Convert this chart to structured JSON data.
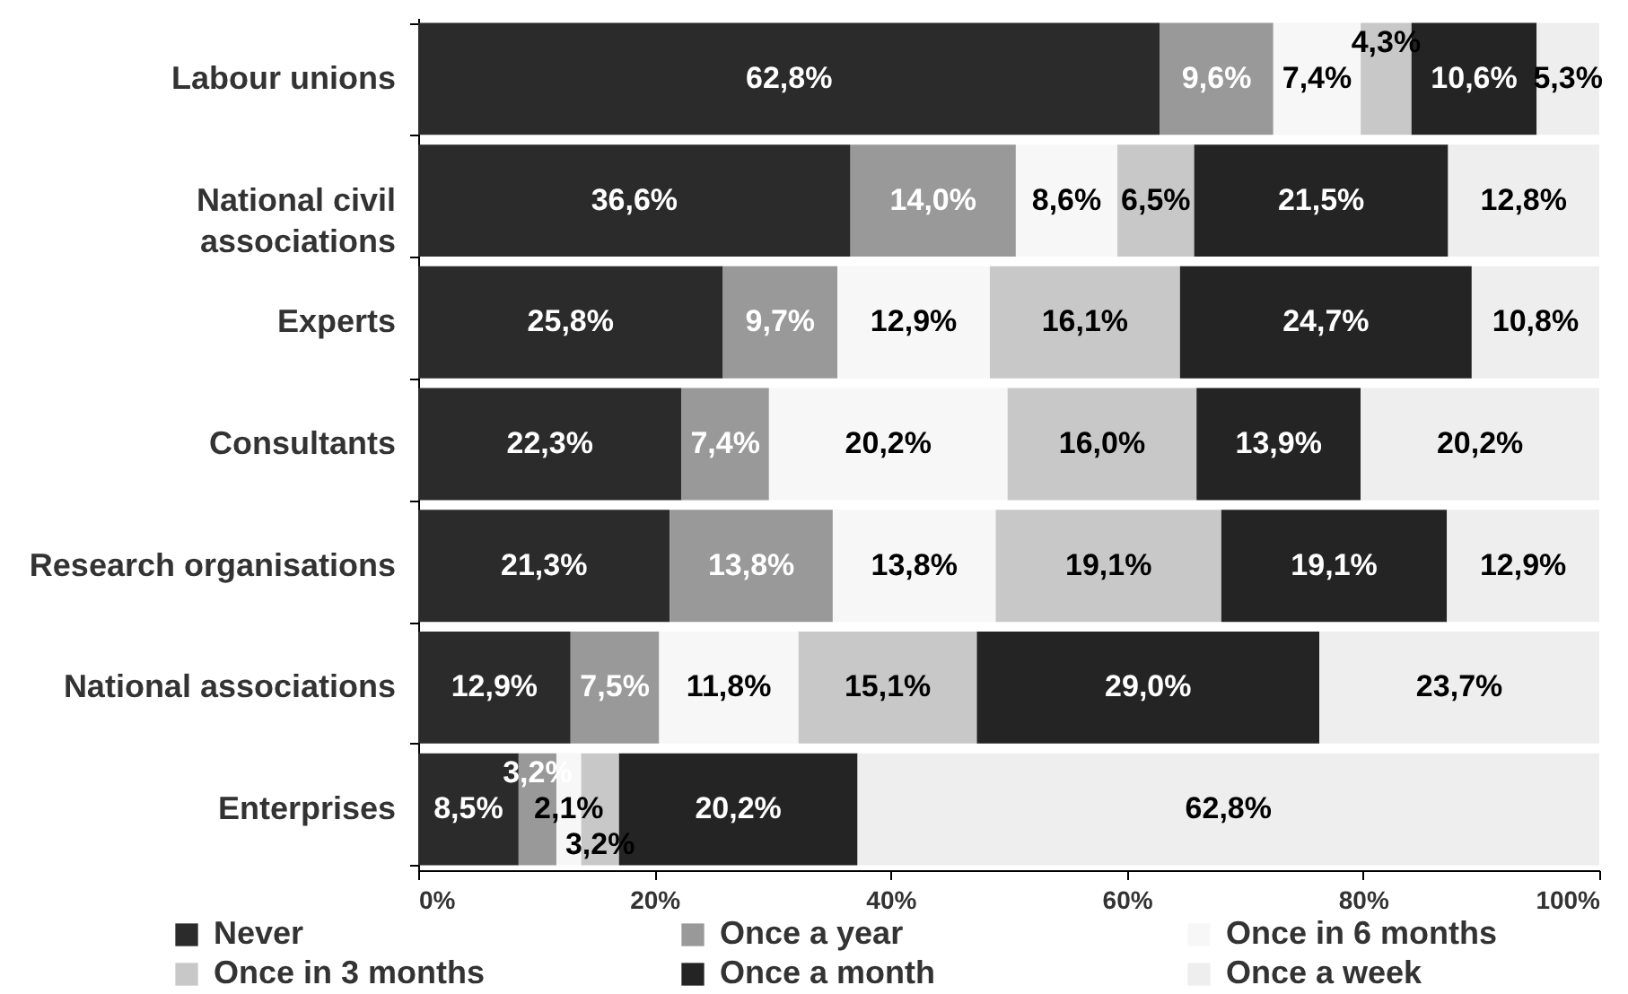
{
  "chart_data": {
    "type": "bar",
    "orientation": "horizontal",
    "stacked": true,
    "categories": [
      "Labour unions",
      "National civil associations",
      "Experts",
      "Consultants",
      "Research organisations",
      "National associations",
      "Enterprises"
    ],
    "series": [
      {
        "name": "Never",
        "color": "#2b2b2b",
        "values": [
          62.8,
          36.6,
          25.8,
          22.3,
          21.3,
          12.9,
          8.5
        ],
        "value_labels": [
          "62,8%",
          "36,6%",
          "25,8%",
          "22,3%",
          "21,3%",
          "12,9%",
          "8,5%"
        ]
      },
      {
        "name": "Once a year",
        "color": "#999999",
        "values": [
          9.6,
          14.0,
          9.7,
          7.4,
          13.8,
          7.5,
          3.2
        ],
        "value_labels": [
          "9,6%",
          "14,0%",
          "9,7%",
          "7,4%",
          "13,8%",
          "7,5%",
          "3,2%"
        ]
      },
      {
        "name": "Once in 6 months",
        "color": "#f7f7f7",
        "values": [
          7.4,
          8.6,
          12.9,
          20.2,
          13.8,
          11.8,
          2.1
        ],
        "value_labels": [
          "7,4%",
          "8,6%",
          "12,9%",
          "20,2%",
          "13,8%",
          "11,8%",
          "2,1%"
        ]
      },
      {
        "name": "Once in 3 months",
        "color": "#c8c8c8",
        "values": [
          4.3,
          6.5,
          16.1,
          16.0,
          19.1,
          15.1,
          3.2
        ],
        "value_labels": [
          "4,3%",
          "6,5%",
          "16,1%",
          "16,0%",
          "19,1%",
          "15,1%",
          "3,2%"
        ]
      },
      {
        "name": "Once a month",
        "color": "#242424",
        "values": [
          10.6,
          21.5,
          24.7,
          13.9,
          19.1,
          29.0,
          20.2
        ],
        "value_labels": [
          "10,6%",
          "21,5%",
          "24,7%",
          "13,9%",
          "19,1%",
          "29,0%",
          "20,2%"
        ]
      },
      {
        "name": "Once a week",
        "color": "#eeeeee",
        "values": [
          5.3,
          12.8,
          10.8,
          20.2,
          12.9,
          23.7,
          62.8
        ],
        "value_labels": [
          "5,3%",
          "12,8%",
          "10,8%",
          "20,2%",
          "12,9%",
          "23,7%",
          "62,8%"
        ]
      }
    ],
    "xlim": [
      0,
      100
    ],
    "xticks": [
      {
        "value": 0,
        "label": "0%"
      },
      {
        "value": 20,
        "label": "20%"
      },
      {
        "value": 40,
        "label": "40%"
      },
      {
        "value": 60,
        "label": "60%"
      },
      {
        "value": 80,
        "label": "80%"
      },
      {
        "value": 100,
        "label": "100%"
      }
    ],
    "legend": "bottom"
  }
}
